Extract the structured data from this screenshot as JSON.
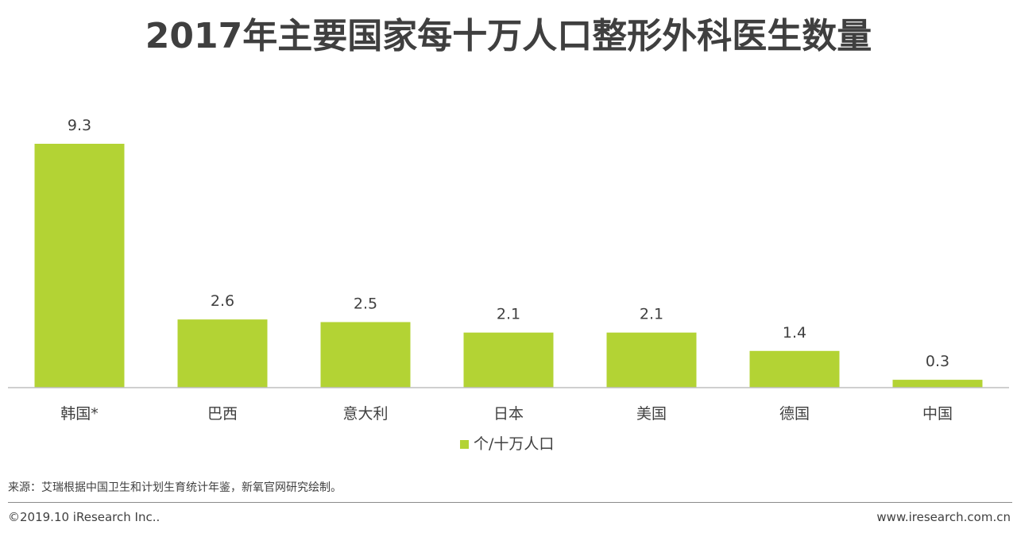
{
  "title": "2017年主要国家每十万人口整形外科医生数量",
  "legend": {
    "label": "个/十万人口",
    "color": "#b3d334"
  },
  "source": "来源：艾瑞根据中国卫生和计划生育统计年鉴，新氧官网研究绘制。",
  "footer": {
    "copyright": "©2019.10 iResearch Inc..",
    "website": "www.iresearch.com.cn"
  },
  "chart_data": {
    "type": "bar",
    "categories": [
      "韩国*",
      "巴西",
      "意大利",
      "日本",
      "美国",
      "德国",
      "中国"
    ],
    "series": [
      {
        "name": "个/十万人口",
        "values": [
          9.3,
          2.6,
          2.5,
          2.1,
          2.1,
          1.4,
          0.3
        ],
        "color": "#b3d334"
      }
    ],
    "data_labels": [
      "9.3",
      "2.6",
      "2.5",
      "2.1",
      "2.1",
      "1.4",
      "0.3"
    ],
    "title": "2017年主要国家每十万人口整形外科医生数量",
    "xlabel": "",
    "ylabel": "",
    "ylim": [
      0,
      9.3
    ],
    "grid": false,
    "legend_position": "bottom"
  }
}
